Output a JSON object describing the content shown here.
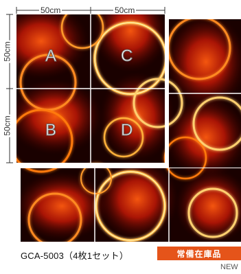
{
  "dimensions": {
    "width_label": "50cm",
    "height_label": "50cm"
  },
  "tiles": [
    {
      "label": "A"
    },
    {
      "label": "B"
    },
    {
      "label": "C"
    },
    {
      "label": "D"
    }
  ],
  "product": {
    "code": "GCA-5003（4枚1セット）",
    "badge": "常備在庫品",
    "new_label": "NEW"
  },
  "colors": {
    "pattern_dark": "#160000",
    "pattern_red": "#8a0b02",
    "pattern_orange": "#ff7a10",
    "pattern_glow": "#ffe07a",
    "badge_bg": "#e5541a"
  }
}
